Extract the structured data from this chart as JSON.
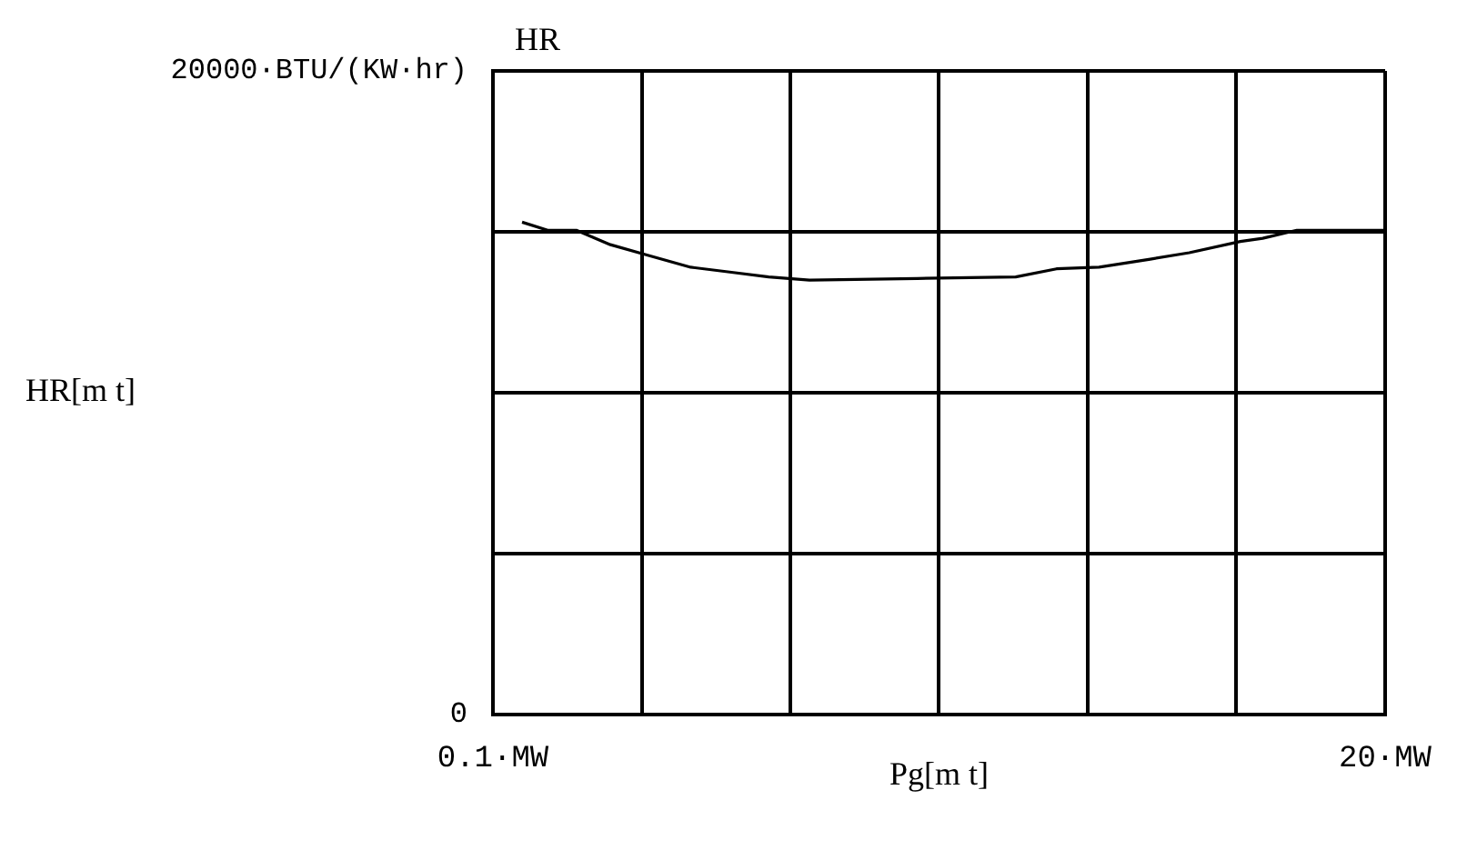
{
  "chart_data": {
    "type": "line",
    "title": "HR",
    "xlabel": "Pg[m t]",
    "ylabel": "HR[m t]",
    "x": [
      0.75,
      1.32,
      1.96,
      2.72,
      3.48,
      4.51,
      5.38,
      6.25,
      7.16,
      9.56,
      11.76,
      12.67,
      13.62,
      14.76,
      15.63,
      16.77,
      17.27,
      18.03,
      20
    ],
    "series": [
      {
        "color": "#000000",
        "values": [
          15300,
          15050,
          15050,
          14600,
          14300,
          13900,
          13750,
          13600,
          13500,
          13550,
          13600,
          13850,
          13900,
          14150,
          14350,
          14700,
          14800,
          15050,
          15050
        ]
      }
    ],
    "xlim": [
      0.1,
      20
    ],
    "xticks": [
      {
        "value": 0.1,
        "label": "0.1·MW"
      },
      {
        "value": 3.4167,
        "label": null
      },
      {
        "value": 6.7333,
        "label": null
      },
      {
        "value": 10.05,
        "label": null
      },
      {
        "value": 13.3667,
        "label": null
      },
      {
        "value": 16.6833,
        "label": null
      },
      {
        "value": 20,
        "label": "20·MW"
      }
    ],
    "ylim": [
      0,
      20000
    ],
    "yticks": [
      0,
      {
        "value": 5000,
        "label": null
      },
      {
        "value": 10000,
        "label": null
      },
      {
        "value": 15000,
        "label": null
      },
      {
        "value": 20000,
        "label": "20000·BTU/(KW·hr)"
      }
    ],
    "grid": true,
    "legend": false,
    "marker": "none",
    "line_style": "solid"
  }
}
